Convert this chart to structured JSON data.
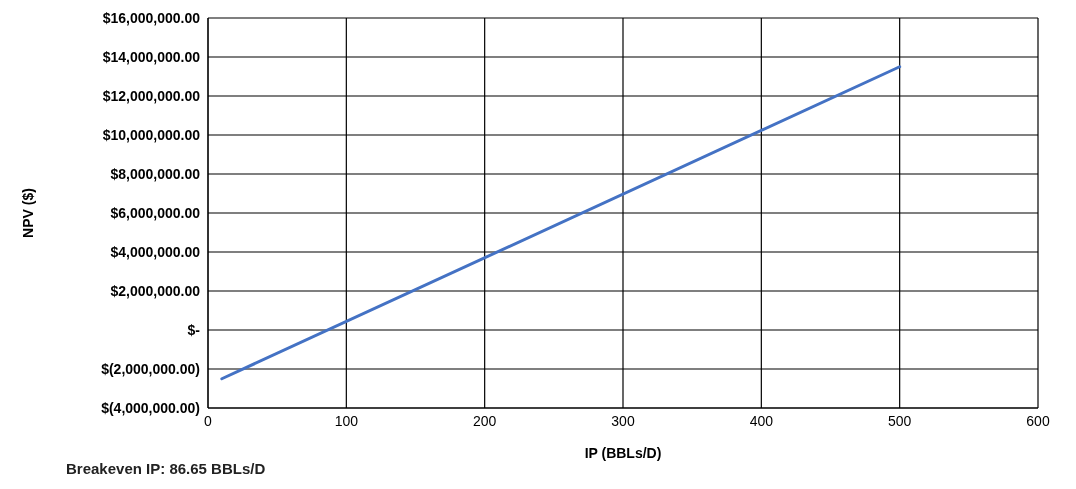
{
  "chart_data": {
    "type": "line",
    "xlabel": "IP (BBLs/D)",
    "ylabel": "NPV ($)",
    "x": [
      10,
      500
    ],
    "series": [
      {
        "color": "#4472c4",
        "values": [
          -2500000,
          13500000
        ]
      }
    ],
    "xlim": [
      0,
      600
    ],
    "xticks": [
      0,
      100,
      200,
      300,
      400,
      500,
      600
    ],
    "ylim": [
      -4000000,
      16000000
    ],
    "yticks": [
      {
        "value": -4000000,
        "label": "$(4,000,000.00)"
      },
      {
        "value": -2000000,
        "label": "$(2,000,000.00)"
      },
      {
        "value": 0,
        "label": "$-"
      },
      {
        "value": 2000000,
        "label": "$2,000,000.00"
      },
      {
        "value": 4000000,
        "label": "$4,000,000.00"
      },
      {
        "value": 6000000,
        "label": "$6,000,000.00"
      },
      {
        "value": 8000000,
        "label": "$8,000,000.00"
      },
      {
        "value": 10000000,
        "label": "$10,000,000.00"
      },
      {
        "value": 12000000,
        "label": "$12,000,000.00"
      },
      {
        "value": 14000000,
        "label": "$14,000,000.00"
      },
      {
        "value": 16000000,
        "label": "$16,000,000.00"
      }
    ],
    "grid": true,
    "marker": "none",
    "line_style": "solid",
    "annotations": [
      "Breakeven IP: 86.65 BBLs/D"
    ]
  }
}
